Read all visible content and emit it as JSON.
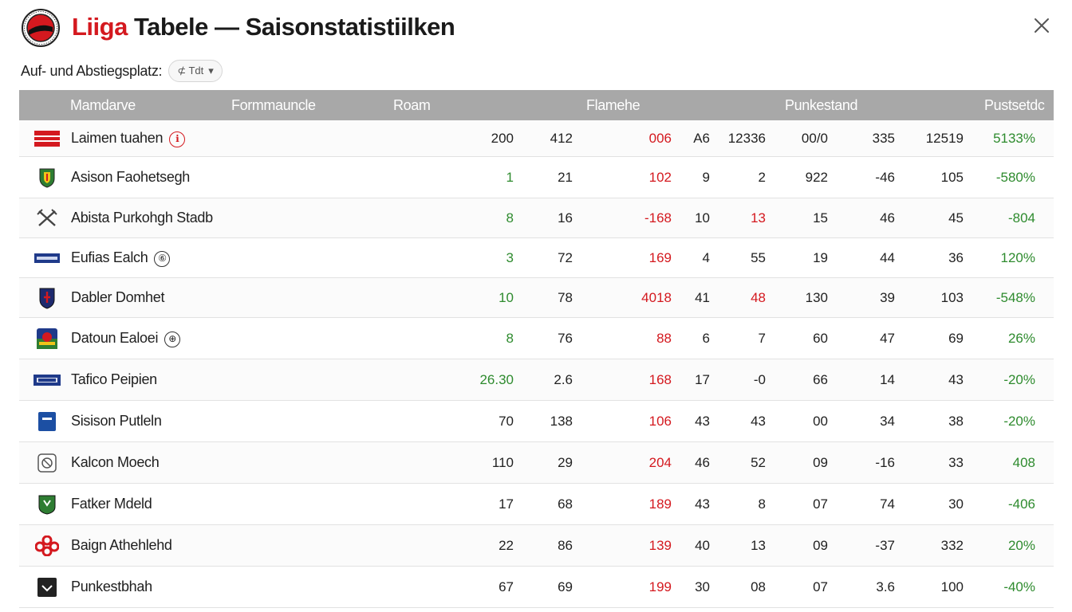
{
  "header": {
    "title_accent": "Liiga",
    "title_rest": " Tabele — Saisonstatistiilken"
  },
  "filter": {
    "label": "Auf- und Abstiegsplatz:",
    "chip_text": "⊄ Tdt",
    "chip_caret": "▾"
  },
  "columns": {
    "col1": "Mamdarve",
    "col2": "Formmauncle",
    "col3": "Roam",
    "col4": "Flamehe",
    "col5": "Punkestand",
    "col6": "Pustsetdc"
  },
  "rows": [
    {
      "name": "Laimen tuahen",
      "mark": "ℹ",
      "mark_color": "red",
      "crest": "red-stripes-icon",
      "v": [
        "200",
        "412",
        "006",
        "A6",
        "12336",
        "00/0",
        "335",
        "12519",
        "5133%"
      ],
      "vc": [
        "",
        "",
        "red",
        "",
        "",
        "",
        "",
        "",
        "green"
      ]
    },
    {
      "name": "Asison Faohetsegh",
      "mark": "",
      "crest": "green-shield-icon",
      "v": [
        "1",
        "21",
        "102",
        "9",
        "2",
        "922",
        "-46",
        "105",
        "-580%"
      ],
      "vc": [
        "green",
        "",
        "red",
        "",
        "",
        "",
        "",
        "",
        "green"
      ]
    },
    {
      "name": "Abista Purkohgh Stadb",
      "mark": "",
      "crest": "crossed-swords-icon",
      "v": [
        "8",
        "16",
        "-168",
        "10",
        "13",
        "15",
        "46",
        "45",
        "-804"
      ],
      "vc": [
        "green",
        "",
        "red",
        "",
        "red",
        "",
        "",
        "",
        "green"
      ]
    },
    {
      "name": "Eufias Ealch",
      "mark": "⑥",
      "mark_color": "dark",
      "crest": "blue-banner-icon",
      "v": [
        "3",
        "72",
        "169",
        "4",
        "55",
        "19",
        "44",
        "36",
        "120%"
      ],
      "vc": [
        "green",
        "",
        "red",
        "",
        "",
        "",
        "",
        "",
        "green"
      ]
    },
    {
      "name": "Dabler Domhet",
      "mark": "",
      "crest": "navy-shield-icon",
      "v": [
        "10",
        "78",
        "4018",
        "41",
        "48",
        "130",
        "39",
        "103",
        "-548%"
      ],
      "vc": [
        "green",
        "",
        "red",
        "",
        "red",
        "",
        "",
        "",
        "green"
      ]
    },
    {
      "name": "Datoun Ealoei",
      "mark": "⊕",
      "mark_color": "dark",
      "crest": "multicolor-crest-icon",
      "v": [
        "8",
        "76",
        "88",
        "6",
        "7",
        "60",
        "47",
        "69",
        "26%"
      ],
      "vc": [
        "green",
        "",
        "red",
        "",
        "",
        "",
        "",
        "",
        "green"
      ]
    },
    {
      "name": "Tafico Peipien",
      "mark": "",
      "crest": "blue-wordmark-icon",
      "v": [
        "26.30",
        "2.6",
        "168",
        "17",
        "-0",
        "66",
        "14",
        "43",
        "-20%"
      ],
      "vc": [
        "green",
        "",
        "red",
        "",
        "",
        "",
        "",
        "",
        "green"
      ]
    },
    {
      "name": "Sisison Putleln",
      "mark": "",
      "crest": "blue-square-icon",
      "v": [
        "70",
        "138",
        "106",
        "43",
        "43",
        "00",
        "34",
        "38",
        "-20%"
      ],
      "vc": [
        "",
        "",
        "red",
        "",
        "",
        "",
        "",
        "",
        "green"
      ]
    },
    {
      "name": "Kalcon Moech",
      "mark": "",
      "crest": "round-badge-icon",
      "v": [
        "110",
        "29",
        "204",
        "46",
        "52",
        "09",
        "-16",
        "33",
        "408"
      ],
      "vc": [
        "",
        "",
        "red",
        "",
        "",
        "",
        "",
        "",
        "green"
      ]
    },
    {
      "name": "Fatker Mdeld",
      "mark": "",
      "crest": "green-badge-icon",
      "v": [
        "17",
        "68",
        "189",
        "43",
        "8",
        "07",
        "74",
        "30",
        "-406"
      ],
      "vc": [
        "",
        "",
        "red",
        "",
        "",
        "",
        "",
        "",
        "green"
      ]
    },
    {
      "name": "Baign Athehlehd",
      "mark": "",
      "crest": "red-flower-icon",
      "v": [
        "22",
        "86",
        "139",
        "40",
        "13",
        "09",
        "-37",
        "332",
        "20%"
      ],
      "vc": [
        "",
        "",
        "red",
        "",
        "",
        "",
        "",
        "",
        "green"
      ]
    },
    {
      "name": "Punkestbhah",
      "mark": "",
      "crest": "dark-square-icon",
      "v": [
        "67",
        "69",
        "199",
        "30",
        "08",
        "07",
        "3.6",
        "100",
        "-40%"
      ],
      "vc": [
        "",
        "",
        "red",
        "",
        "",
        "",
        "",
        "",
        "green"
      ]
    }
  ],
  "colors": {
    "accent_red": "#d4191f",
    "positive_green": "#2e8b2e",
    "header_gray": "#a8a8a8"
  }
}
